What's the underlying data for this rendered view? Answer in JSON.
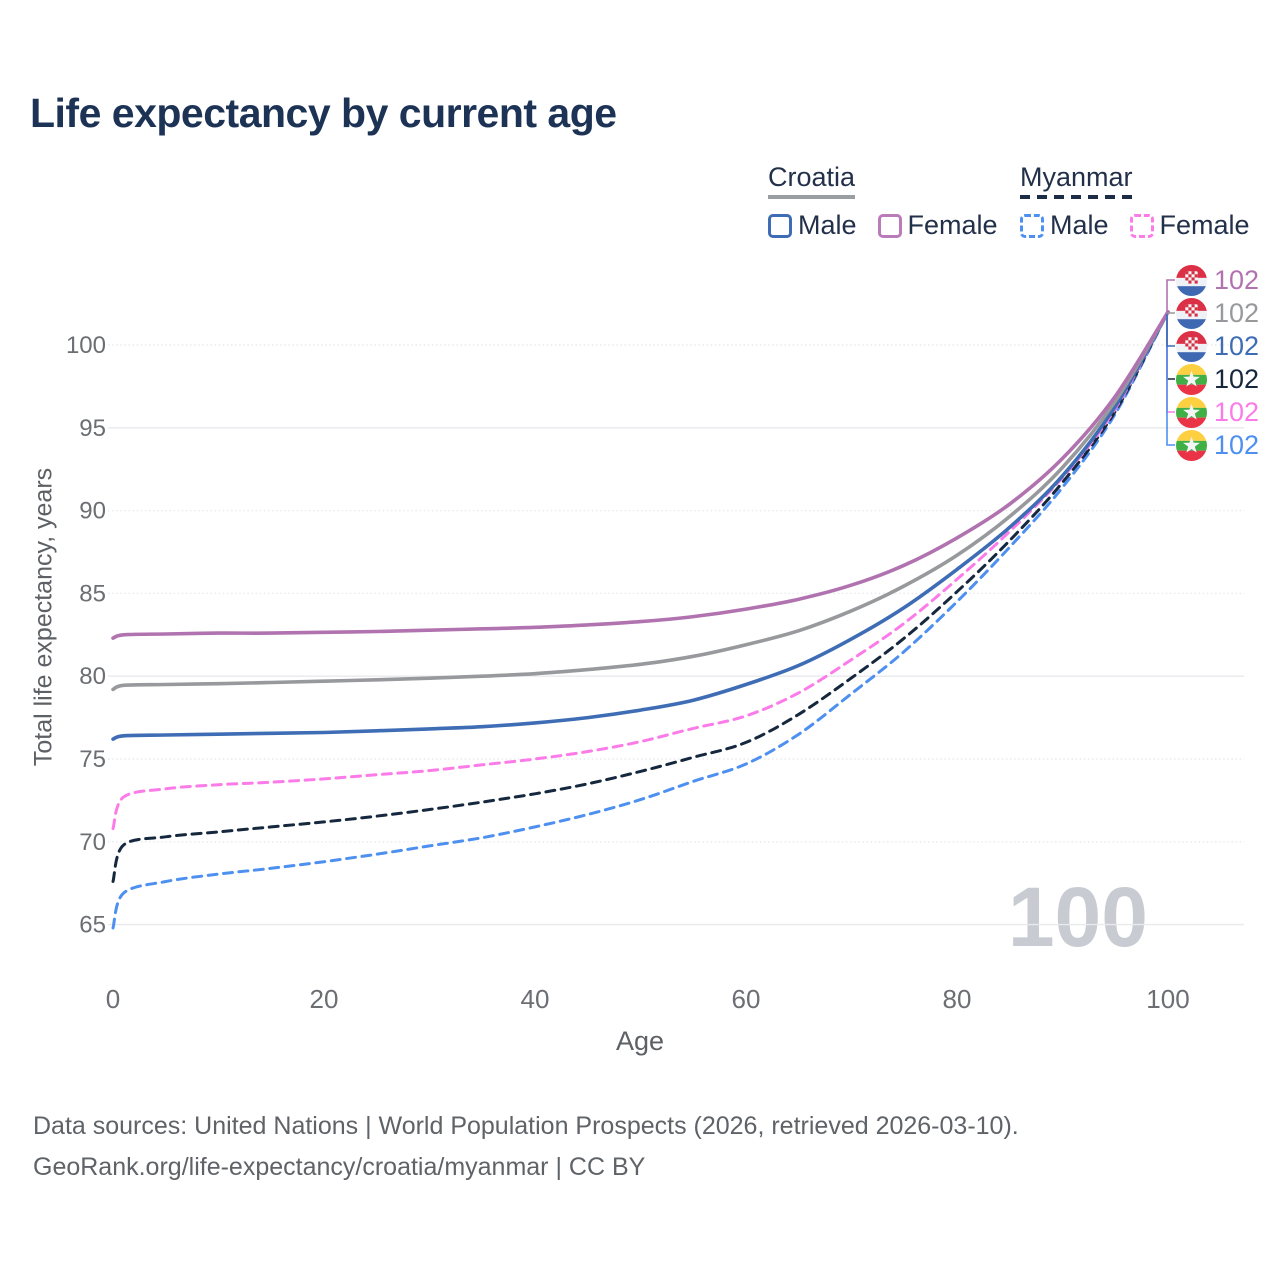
{
  "header": {
    "title": "Life expectancy by current age"
  },
  "legend": {
    "groups": [
      {
        "title": "Croatia",
        "style": "solid",
        "items": [
          {
            "label": "Male",
            "color": "#3e6db5"
          },
          {
            "label": "Female",
            "color": "#bb7ab8"
          }
        ]
      },
      {
        "title": "Myanmar",
        "style": "dashed",
        "items": [
          {
            "label": "Male",
            "color": "#4d90f0"
          },
          {
            "label": "Female",
            "color": "#fb7ce8"
          }
        ]
      }
    ]
  },
  "chart_data": {
    "type": "line",
    "title": "Life expectancy by current age",
    "xlabel": "Age",
    "ylabel": "Total life expectancy, years",
    "xlim": [
      0,
      100
    ],
    "ylim": [
      63.5,
      103.5
    ],
    "xticks": [
      0,
      20,
      40,
      60,
      80,
      100
    ],
    "yticks": [
      65,
      70,
      75,
      80,
      85,
      90,
      95,
      100
    ],
    "solid_gridlines": [
      65,
      80,
      95
    ],
    "grid": true,
    "legend_position": "top-right",
    "watermark": "100",
    "x": [
      0,
      1,
      5,
      10,
      15,
      20,
      25,
      30,
      35,
      40,
      45,
      50,
      55,
      60,
      65,
      70,
      75,
      80,
      85,
      90,
      95,
      100
    ],
    "series": [
      {
        "id": "croatia-female",
        "name": "Croatia Female",
        "color": "#b173b0",
        "dash": "solid",
        "values": [
          82.3,
          82.5,
          82.55,
          82.6,
          82.6,
          82.65,
          82.7,
          82.78,
          82.86,
          82.95,
          83.1,
          83.3,
          83.6,
          84.05,
          84.65,
          85.5,
          86.7,
          88.35,
          90.4,
          93.15,
          96.9,
          102
        ]
      },
      {
        "id": "croatia-both",
        "name": "Croatia (both sexes)",
        "color": "#97999c",
        "dash": "solid",
        "values": [
          79.2,
          79.45,
          79.5,
          79.55,
          79.62,
          79.7,
          79.78,
          79.88,
          80.0,
          80.15,
          80.4,
          80.72,
          81.2,
          81.9,
          82.75,
          83.95,
          85.45,
          87.3,
          89.65,
          92.6,
          96.6,
          102
        ]
      },
      {
        "id": "croatia-male",
        "name": "Croatia Male",
        "color": "#3e6db5",
        "dash": "solid",
        "values": [
          76.2,
          76.4,
          76.45,
          76.5,
          76.55,
          76.6,
          76.7,
          76.82,
          76.95,
          77.18,
          77.5,
          77.95,
          78.55,
          79.5,
          80.65,
          82.25,
          84.15,
          86.45,
          89.0,
          92.1,
          96.3,
          102
        ]
      },
      {
        "id": "myanmar-female",
        "name": "Myanmar Female",
        "color": "#fb7ce8",
        "dash": "dashed",
        "values": [
          70.8,
          72.7,
          73.2,
          73.45,
          73.6,
          73.8,
          74.05,
          74.3,
          74.65,
          75.0,
          75.45,
          76.05,
          76.85,
          77.6,
          79.0,
          81.0,
          83.2,
          85.85,
          88.75,
          92.0,
          96.15,
          102
        ]
      },
      {
        "id": "myanmar-both",
        "name": "Myanmar (both sexes)",
        "color": "#16283e",
        "dash": "dashed",
        "values": [
          67.6,
          69.8,
          70.3,
          70.6,
          70.9,
          71.2,
          71.55,
          71.95,
          72.4,
          72.9,
          73.5,
          74.25,
          75.1,
          76.0,
          77.7,
          79.9,
          82.3,
          85.1,
          88.2,
          91.7,
          96.0,
          102
        ]
      },
      {
        "id": "myanmar-male",
        "name": "Myanmar Male",
        "color": "#4d90f0",
        "dash": "dashed",
        "values": [
          64.8,
          66.9,
          67.6,
          68.05,
          68.4,
          68.8,
          69.25,
          69.75,
          70.25,
          70.9,
          71.65,
          72.55,
          73.65,
          74.7,
          76.5,
          78.95,
          81.5,
          84.5,
          87.8,
          91.4,
          95.85,
          102
        ]
      }
    ],
    "end_labels": [
      {
        "value": "102",
        "color": "#b173b0",
        "flag": "croatia"
      },
      {
        "value": "102",
        "color": "#97999c",
        "flag": "croatia"
      },
      {
        "value": "102",
        "color": "#3e6db5",
        "flag": "croatia"
      },
      {
        "value": "102",
        "color": "#16283e",
        "flag": "myanmar"
      },
      {
        "value": "102",
        "color": "#fb7ce8",
        "flag": "myanmar"
      },
      {
        "value": "102",
        "color": "#4d90f0",
        "flag": "myanmar"
      }
    ]
  },
  "footer": {
    "line1": "Data sources: United Nations | World Population Prospects (2026, retrieved 2026-03-10).",
    "line2": "GeoRank.org/life-expectancy/croatia/myanmar | CC BY"
  }
}
